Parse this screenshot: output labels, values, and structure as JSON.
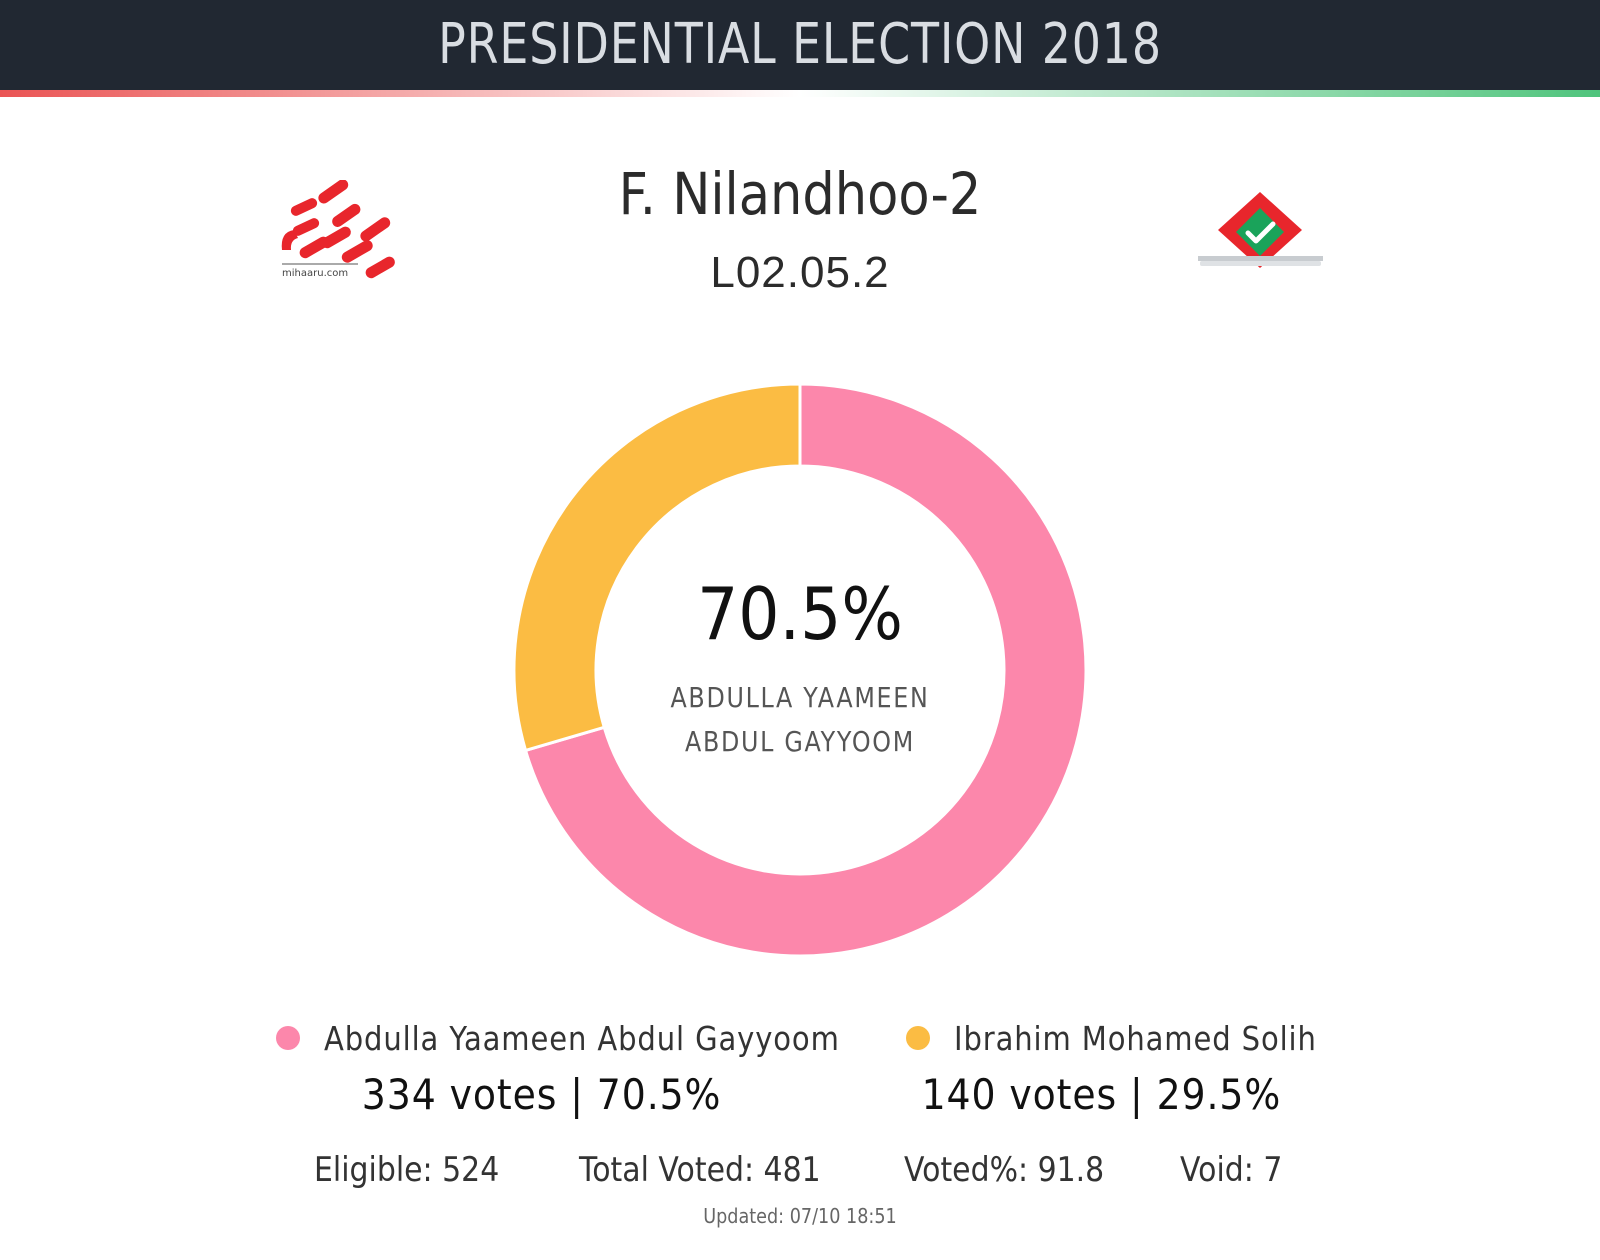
{
  "header": {
    "title": "PRESIDENTIAL ELECTION 2018"
  },
  "logos": {
    "left_icon": "mihaaru-logo-icon",
    "left_text": "mihaaru.com",
    "right_icon": "ballot-box-check-icon"
  },
  "constituency": {
    "name": "F. Nilandhoo-2",
    "code": "L02.05.2"
  },
  "center": {
    "percent": "70.5%",
    "name_line1": "ABDULLA YAAMEEN",
    "name_line2": "ABDUL GAYYOOM"
  },
  "colors": {
    "header_bg": "#212832",
    "yaameen": "#fc87ab",
    "solih": "#fbbc43",
    "strip_left": "#ea5454",
    "strip_right": "#4fc47c"
  },
  "chart_data": {
    "type": "pie",
    "donut": true,
    "categories": [
      "Abdulla Yaameen Abdul Gayyoom",
      "Ibrahim Mohamed Solih"
    ],
    "values": [
      334,
      140
    ],
    "percentages": [
      70.5,
      29.5
    ],
    "colors": [
      "#fc87ab",
      "#fbbc43"
    ]
  },
  "legend": [
    {
      "name": "Abdulla Yaameen Abdul Gayyoom",
      "votes_text": "334 votes | 70.5%",
      "color": "#fc87ab"
    },
    {
      "name": "Ibrahim Mohamed Solih",
      "votes_text": "140 votes | 29.5%",
      "color": "#fbbc43"
    }
  ],
  "stats": {
    "eligible": "Eligible: 524",
    "total_voted": "Total Voted: 481",
    "voted_pct": "Voted%: 91.8",
    "void": "Void: 7"
  },
  "updated": "Updated: 07/10 18:51"
}
